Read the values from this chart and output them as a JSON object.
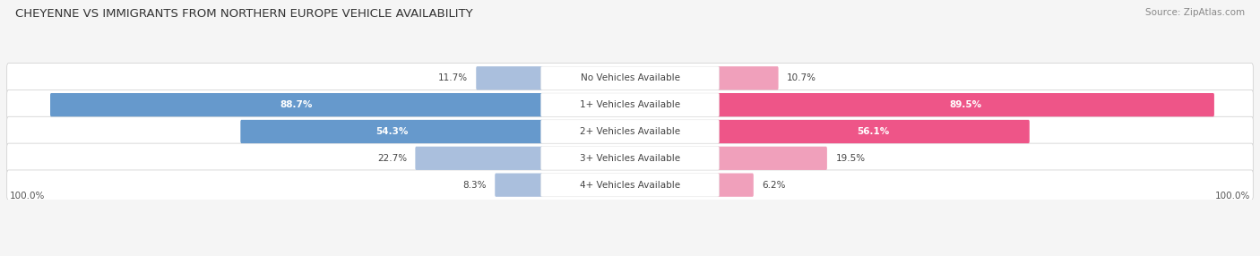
{
  "title": "CHEYENNE VS IMMIGRANTS FROM NORTHERN EUROPE VEHICLE AVAILABILITY",
  "source": "Source: ZipAtlas.com",
  "categories": [
    "No Vehicles Available",
    "1+ Vehicles Available",
    "2+ Vehicles Available",
    "3+ Vehicles Available",
    "4+ Vehicles Available"
  ],
  "cheyenne_values": [
    11.7,
    88.7,
    54.3,
    22.7,
    8.3
  ],
  "immigrants_values": [
    10.7,
    89.5,
    56.1,
    19.5,
    6.2
  ],
  "cheyenne_color_large": "#6699CC",
  "cheyenne_color_small": "#AABFDD",
  "immigrants_color_large": "#EE5588",
  "immigrants_color_small": "#F0A0BB",
  "cheyenne_label": "Cheyenne",
  "immigrants_label": "Immigrants from Northern Europe",
  "max_value": 100.0,
  "fig_bg": "#f5f5f5",
  "row_bg": "#e8e8ec",
  "label_threshold": 30.0
}
